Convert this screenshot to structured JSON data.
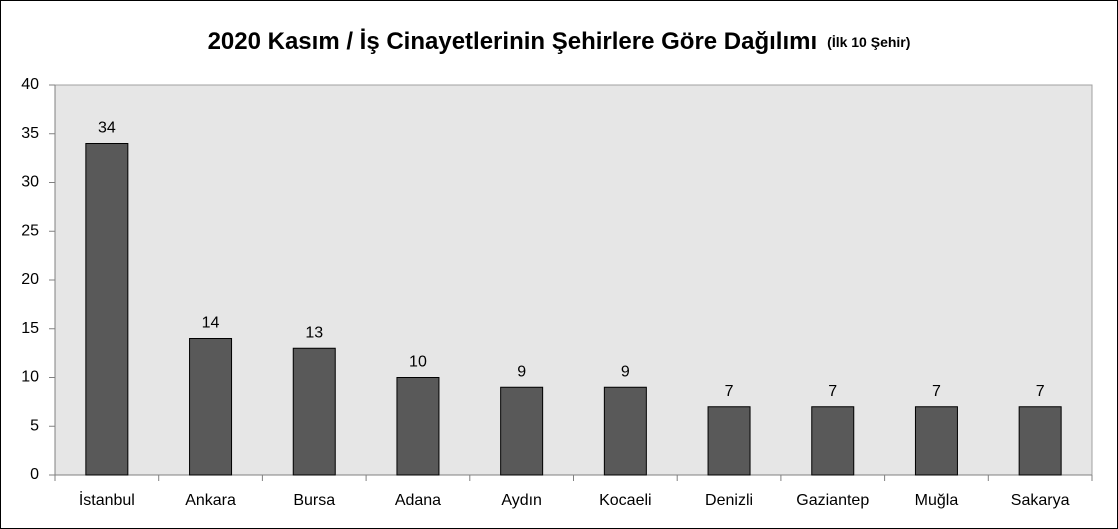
{
  "chart_data": {
    "type": "bar",
    "title": "2020 Kasım / İş Cinayetlerinin Şehirlere Göre Dağılımı",
    "subtitle": "(İlk 10 Şehir)",
    "categories": [
      "İstanbul",
      "Ankara",
      "Bursa",
      "Adana",
      "Aydın",
      "Kocaeli",
      "Denizli",
      "Gaziantep",
      "Muğla",
      "Sakarya"
    ],
    "values": [
      34,
      14,
      13,
      10,
      9,
      9,
      7,
      7,
      7,
      7
    ],
    "color": "#595959",
    "ylim": [
      0,
      40
    ],
    "yticks": [
      0,
      5,
      10,
      15,
      20,
      25,
      30,
      35,
      40
    ],
    "grid": false
  }
}
